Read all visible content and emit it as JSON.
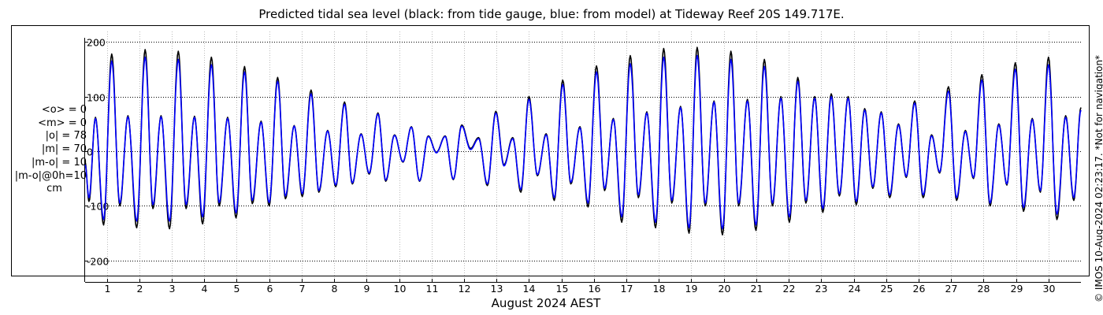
{
  "title": "Predicted tidal sea level (black: from tide gauge, blue: from model) at Tideway Reef 20S 149.717E.",
  "stats": {
    "mean_o": "<o> = 0",
    "mean_m": "<m> = 0",
    "abs_o": "|o| = 78",
    "abs_m": "|m| = 70",
    "abs_diff": "|m-o| = 10",
    "abs_diff_0h": "|m-o|@0h=10",
    "unit": "cm"
  },
  "credit": "© IMOS 10-Aug-2024 02:23:17. *Not for navigation*",
  "colors": {
    "gauge": "#000000",
    "model": "#0000ff",
    "axes": "#000000",
    "grid": "#bbbbbb"
  },
  "chart_data": {
    "type": "line",
    "xlabel": "August 2024 AEST",
    "ylabel": "",
    "x_range_days": [
      0.33,
      31.0
    ],
    "ylim": [
      -220,
      220
    ],
    "yticks": [
      200,
      100,
      0,
      -100,
      -200
    ],
    "yticklabels": [
      "200",
      "100",
      "0",
      "-100",
      "-200"
    ],
    "xticks": [
      1,
      2,
      3,
      4,
      5,
      6,
      7,
      8,
      9,
      10,
      11,
      12,
      13,
      14,
      15,
      16,
      17,
      18,
      19,
      20,
      21,
      22,
      23,
      24,
      25,
      26,
      27,
      28,
      29,
      30
    ],
    "xticklabels": [
      "1",
      "2",
      "3",
      "4",
      "5",
      "6",
      "7",
      "8",
      "9",
      "10",
      "11",
      "12",
      "13",
      "14",
      "15",
      "16",
      "17",
      "18",
      "19",
      "20",
      "21",
      "22",
      "23",
      "24",
      "25",
      "26",
      "27",
      "28",
      "29",
      "30"
    ],
    "grid": true,
    "series": [
      {
        "legend": "black: from tide gauge",
        "color": "#000000",
        "extremes": [
          [
            0.33,
            -20
          ],
          [
            0.45,
            -92
          ],
          [
            0.65,
            62
          ],
          [
            0.9,
            -135
          ],
          [
            1.15,
            178
          ],
          [
            1.4,
            -100
          ],
          [
            1.65,
            65
          ],
          [
            1.92,
            -140
          ],
          [
            2.18,
            186
          ],
          [
            2.42,
            -105
          ],
          [
            2.67,
            65
          ],
          [
            2.93,
            -142
          ],
          [
            3.2,
            183
          ],
          [
            3.44,
            -105
          ],
          [
            3.7,
            64
          ],
          [
            3.95,
            -133
          ],
          [
            4.22,
            172
          ],
          [
            4.46,
            -100
          ],
          [
            4.72,
            62
          ],
          [
            4.98,
            -122
          ],
          [
            5.24,
            155
          ],
          [
            5.48,
            -96
          ],
          [
            5.75,
            55
          ],
          [
            6.0,
            -100
          ],
          [
            6.26,
            135
          ],
          [
            6.5,
            -87
          ],
          [
            6.77,
            47
          ],
          [
            7.02,
            -83
          ],
          [
            7.29,
            112
          ],
          [
            7.53,
            -75
          ],
          [
            7.8,
            38
          ],
          [
            8.05,
            -65
          ],
          [
            8.32,
            90
          ],
          [
            8.56,
            -60
          ],
          [
            8.83,
            32
          ],
          [
            9.08,
            -42
          ],
          [
            9.35,
            70
          ],
          [
            9.59,
            -55
          ],
          [
            9.86,
            30
          ],
          [
            10.12,
            -20
          ],
          [
            10.38,
            45
          ],
          [
            10.63,
            -55
          ],
          [
            10.9,
            28
          ],
          [
            11.15,
            -2
          ],
          [
            11.42,
            28
          ],
          [
            11.67,
            -52
          ],
          [
            11.93,
            48
          ],
          [
            12.2,
            5
          ],
          [
            12.45,
            25
          ],
          [
            12.72,
            -63
          ],
          [
            12.98,
            73
          ],
          [
            13.23,
            -25
          ],
          [
            13.5,
            25
          ],
          [
            13.75,
            -75
          ],
          [
            14.0,
            100
          ],
          [
            14.26,
            -45
          ],
          [
            14.53,
            32
          ],
          [
            14.78,
            -90
          ],
          [
            15.04,
            130
          ],
          [
            15.29,
            -60
          ],
          [
            15.57,
            45
          ],
          [
            15.82,
            -102
          ],
          [
            16.08,
            156
          ],
          [
            16.33,
            -72
          ],
          [
            16.6,
            60
          ],
          [
            16.86,
            -130
          ],
          [
            17.12,
            175
          ],
          [
            17.37,
            -85
          ],
          [
            17.63,
            72
          ],
          [
            17.9,
            -140
          ],
          [
            18.15,
            188
          ],
          [
            18.4,
            -95
          ],
          [
            18.67,
            82
          ],
          [
            18.93,
            -150
          ],
          [
            19.18,
            190
          ],
          [
            19.43,
            -100
          ],
          [
            19.7,
            92
          ],
          [
            19.96,
            -153
          ],
          [
            20.22,
            183
          ],
          [
            20.46,
            -100
          ],
          [
            20.73,
            95
          ],
          [
            20.99,
            -145
          ],
          [
            21.25,
            168
          ],
          [
            21.5,
            -100
          ],
          [
            21.76,
            100
          ],
          [
            22.02,
            -130
          ],
          [
            22.28,
            135
          ],
          [
            22.53,
            -95
          ],
          [
            22.8,
            100
          ],
          [
            23.05,
            -112
          ],
          [
            23.31,
            105
          ],
          [
            23.56,
            -82
          ],
          [
            23.83,
            100
          ],
          [
            24.08,
            -98
          ],
          [
            24.34,
            78
          ],
          [
            24.59,
            -68
          ],
          [
            24.85,
            72
          ],
          [
            25.11,
            -85
          ],
          [
            25.38,
            50
          ],
          [
            25.62,
            -48
          ],
          [
            25.88,
            92
          ],
          [
            26.14,
            -85
          ],
          [
            26.4,
            30
          ],
          [
            26.65,
            -40
          ],
          [
            26.92,
            118
          ],
          [
            27.17,
            -90
          ],
          [
            27.44,
            38
          ],
          [
            27.69,
            -50
          ],
          [
            27.95,
            140
          ],
          [
            28.2,
            -100
          ],
          [
            28.47,
            50
          ],
          [
            28.72,
            -62
          ],
          [
            28.98,
            162
          ],
          [
            29.23,
            -110
          ],
          [
            29.5,
            60
          ],
          [
            29.75,
            -75
          ],
          [
            30.0,
            172
          ],
          [
            30.26,
            -125
          ],
          [
            30.53,
            65
          ],
          [
            30.78,
            -90
          ],
          [
            31.0,
            80
          ]
        ]
      },
      {
        "legend": "blue: from model",
        "color": "#0000ff",
        "extremes": [
          [
            0.33,
            -25
          ],
          [
            0.45,
            -85
          ],
          [
            0.65,
            60
          ],
          [
            0.9,
            -125
          ],
          [
            1.15,
            165
          ],
          [
            1.4,
            -95
          ],
          [
            1.65,
            63
          ],
          [
            1.92,
            -128
          ],
          [
            2.18,
            172
          ],
          [
            2.42,
            -98
          ],
          [
            2.67,
            63
          ],
          [
            2.93,
            -128
          ],
          [
            3.2,
            168
          ],
          [
            3.44,
            -98
          ],
          [
            3.7,
            62
          ],
          [
            3.95,
            -120
          ],
          [
            4.22,
            158
          ],
          [
            4.46,
            -94
          ],
          [
            4.72,
            60
          ],
          [
            4.98,
            -113
          ],
          [
            5.24,
            145
          ],
          [
            5.48,
            -90
          ],
          [
            5.75,
            53
          ],
          [
            6.0,
            -94
          ],
          [
            6.26,
            128
          ],
          [
            6.5,
            -82
          ],
          [
            6.77,
            46
          ],
          [
            7.02,
            -78
          ],
          [
            7.29,
            105
          ],
          [
            7.53,
            -72
          ],
          [
            7.8,
            37
          ],
          [
            8.05,
            -62
          ],
          [
            8.32,
            86
          ],
          [
            8.56,
            -58
          ],
          [
            8.83,
            31
          ],
          [
            9.08,
            -40
          ],
          [
            9.35,
            68
          ],
          [
            9.59,
            -53
          ],
          [
            9.86,
            29
          ],
          [
            10.12,
            -19
          ],
          [
            10.38,
            44
          ],
          [
            10.63,
            -54
          ],
          [
            10.9,
            27
          ],
          [
            11.15,
            -3
          ],
          [
            11.42,
            27
          ],
          [
            11.67,
            -51
          ],
          [
            11.93,
            46
          ],
          [
            12.2,
            3
          ],
          [
            12.45,
            23
          ],
          [
            12.72,
            -60
          ],
          [
            12.98,
            70
          ],
          [
            13.23,
            -27
          ],
          [
            13.5,
            23
          ],
          [
            13.75,
            -70
          ],
          [
            14.0,
            95
          ],
          [
            14.26,
            -43
          ],
          [
            14.53,
            30
          ],
          [
            14.78,
            -85
          ],
          [
            15.04,
            122
          ],
          [
            15.29,
            -57
          ],
          [
            15.57,
            43
          ],
          [
            15.82,
            -95
          ],
          [
            16.08,
            145
          ],
          [
            16.33,
            -68
          ],
          [
            16.6,
            58
          ],
          [
            16.86,
            -120
          ],
          [
            17.12,
            160
          ],
          [
            17.37,
            -80
          ],
          [
            17.63,
            70
          ],
          [
            17.9,
            -130
          ],
          [
            18.15,
            172
          ],
          [
            18.4,
            -90
          ],
          [
            18.67,
            80
          ],
          [
            18.93,
            -140
          ],
          [
            19.18,
            175
          ],
          [
            19.43,
            -95
          ],
          [
            19.7,
            90
          ],
          [
            19.96,
            -142
          ],
          [
            20.22,
            168
          ],
          [
            20.46,
            -95
          ],
          [
            20.73,
            92
          ],
          [
            20.99,
            -135
          ],
          [
            21.25,
            155
          ],
          [
            21.5,
            -95
          ],
          [
            21.76,
            97
          ],
          [
            22.02,
            -120
          ],
          [
            22.28,
            128
          ],
          [
            22.53,
            -90
          ],
          [
            22.8,
            97
          ],
          [
            23.05,
            -105
          ],
          [
            23.31,
            100
          ],
          [
            23.56,
            -78
          ],
          [
            23.83,
            97
          ],
          [
            24.08,
            -92
          ],
          [
            24.34,
            75
          ],
          [
            24.59,
            -65
          ],
          [
            24.85,
            70
          ],
          [
            25.11,
            -80
          ],
          [
            25.38,
            48
          ],
          [
            25.62,
            -46
          ],
          [
            25.88,
            88
          ],
          [
            26.14,
            -80
          ],
          [
            26.4,
            28
          ],
          [
            26.65,
            -38
          ],
          [
            26.92,
            110
          ],
          [
            27.17,
            -85
          ],
          [
            27.44,
            36
          ],
          [
            27.69,
            -48
          ],
          [
            27.95,
            130
          ],
          [
            28.2,
            -95
          ],
          [
            28.47,
            48
          ],
          [
            28.72,
            -60
          ],
          [
            28.98,
            150
          ],
          [
            29.23,
            -103
          ],
          [
            29.5,
            58
          ],
          [
            29.75,
            -72
          ],
          [
            30.0,
            158
          ],
          [
            30.26,
            -115
          ],
          [
            30.53,
            62
          ],
          [
            30.78,
            -85
          ],
          [
            31.0,
            75
          ]
        ]
      }
    ]
  }
}
